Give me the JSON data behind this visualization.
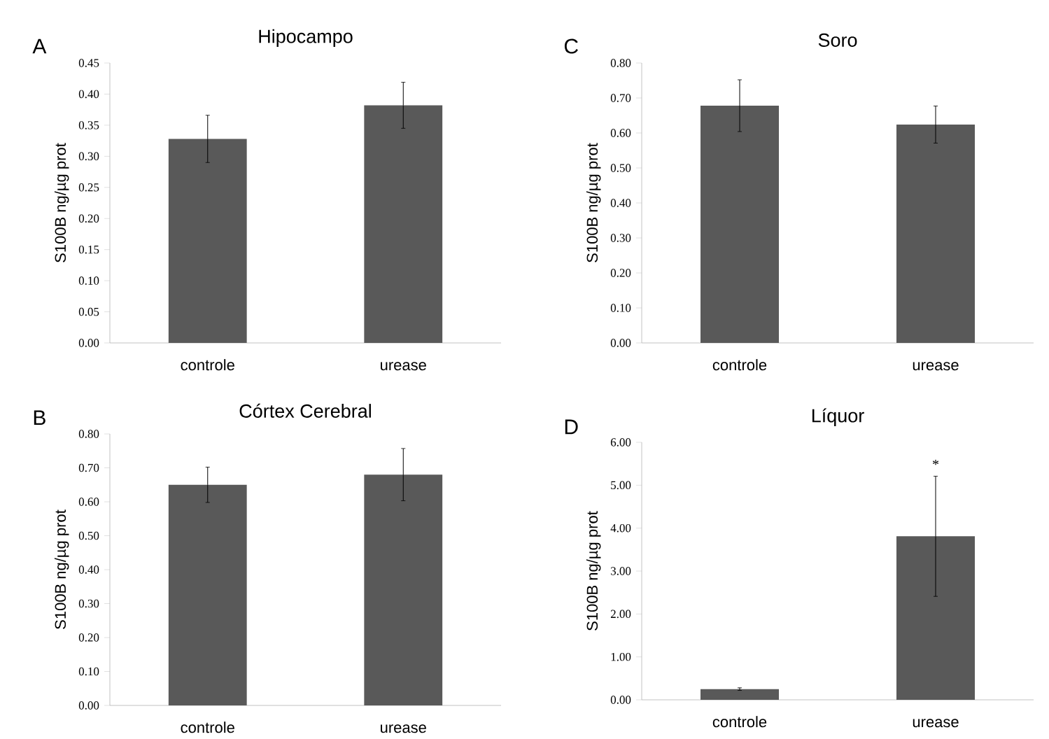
{
  "chart_data": [
    {
      "type": "bar",
      "title": "Hipocampo",
      "ylabel": "S100B ng/µg prot",
      "annotations": [
        "A"
      ],
      "categories": [
        "controle",
        "urease"
      ],
      "values": [
        0.328,
        0.382
      ],
      "errors": [
        0.038,
        0.037
      ],
      "color": "#595959",
      "ylim": [
        0,
        0.45
      ],
      "yticks": [
        {
          "value": 0,
          "label": "0.00"
        },
        {
          "value": 0.05,
          "label": "0.05"
        },
        {
          "value": 0.1,
          "label": "0.10"
        },
        {
          "value": 0.15,
          "label": "0.15"
        },
        {
          "value": 0.2,
          "label": "0.20"
        },
        {
          "value": 0.25,
          "label": "0.25"
        },
        {
          "value": 0.3,
          "label": "0.30"
        },
        {
          "value": 0.35,
          "label": "0.35"
        },
        {
          "value": 0.4,
          "label": "0.40"
        },
        {
          "value": 0.45,
          "label": "0.45"
        }
      ]
    },
    {
      "type": "bar",
      "title": "Soro",
      "ylabel": "S100B ng/µg prot",
      "annotations": [
        "C"
      ],
      "categories": [
        "controle",
        "urease"
      ],
      "values": [
        0.678,
        0.624
      ],
      "errors": [
        0.074,
        0.053
      ],
      "color": "#595959",
      "ylim": [
        0,
        0.8
      ],
      "yticks": [
        {
          "value": 0,
          "label": "0.00"
        },
        {
          "value": 0.1,
          "label": "0.10"
        },
        {
          "value": 0.2,
          "label": "0.20"
        },
        {
          "value": 0.3,
          "label": "0.30"
        },
        {
          "value": 0.4,
          "label": "0.40"
        },
        {
          "value": 0.5,
          "label": "0.50"
        },
        {
          "value": 0.6,
          "label": "0.60"
        },
        {
          "value": 0.7,
          "label": "0.70"
        },
        {
          "value": 0.8,
          "label": "0.80"
        }
      ]
    },
    {
      "type": "bar",
      "title": "Córtex Cerebral",
      "ylabel": "S100B ng/µg prot",
      "annotations": [
        "B"
      ],
      "categories": [
        "controle",
        "urease"
      ],
      "values": [
        0.65,
        0.68
      ],
      "errors": [
        0.052,
        0.077
      ],
      "color": "#595959",
      "ylim": [
        0,
        0.8
      ],
      "yticks": [
        {
          "value": 0,
          "label": "0.00"
        },
        {
          "value": 0.1,
          "label": "0.10"
        },
        {
          "value": 0.2,
          "label": "0.20"
        },
        {
          "value": 0.3,
          "label": "0.30"
        },
        {
          "value": 0.4,
          "label": "0.40"
        },
        {
          "value": 0.5,
          "label": "0.50"
        },
        {
          "value": 0.6,
          "label": "0.60"
        },
        {
          "value": 0.7,
          "label": "0.70"
        },
        {
          "value": 0.8,
          "label": "0.80"
        }
      ]
    },
    {
      "type": "bar",
      "title": "Líquor",
      "ylabel": "S100B ng/µg prot",
      "annotations": [
        "D",
        "*"
      ],
      "categories": [
        "controle",
        "urease"
      ],
      "values": [
        0.25,
        3.81
      ],
      "errors": [
        0.03,
        1.4
      ],
      "color": "#595959",
      "ylim": [
        0,
        6
      ],
      "yticks": [
        {
          "value": 0,
          "label": "0.00"
        },
        {
          "value": 1,
          "label": "1.00"
        },
        {
          "value": 2,
          "label": "2.00"
        },
        {
          "value": 3,
          "label": "3.00"
        },
        {
          "value": 4,
          "label": "4.00"
        },
        {
          "value": 5,
          "label": "5.00"
        },
        {
          "value": 6,
          "label": "6.00"
        }
      ]
    }
  ]
}
